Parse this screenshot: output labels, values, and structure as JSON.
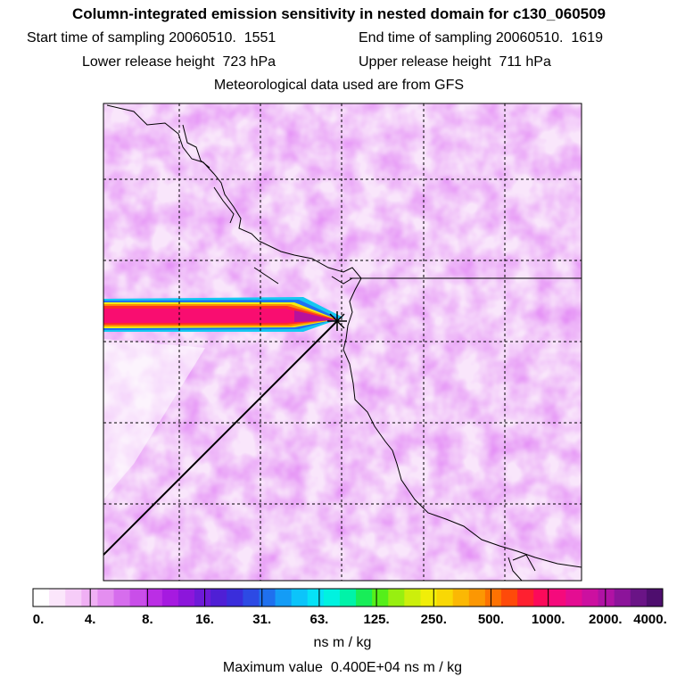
{
  "header": {
    "title": "Column-integrated emission sensitivity in nested domain for c130_060509",
    "start_label": "Start time of sampling",
    "start_value": "20060510.  1551",
    "end_label": "End time of sampling",
    "end_value": "20060510.  1619",
    "lower_label": "Lower release height",
    "lower_value": "723 hPa",
    "upper_label": "Upper release height",
    "upper_value": "711 hPa",
    "met_line": "Meteorological data used are from GFS"
  },
  "colorbar": {
    "labels": [
      "0.",
      "4.",
      "8.",
      "16.",
      "31.",
      "63.",
      "125.",
      "250.",
      "500.",
      "1000.",
      "2000.",
      "4000."
    ],
    "colors": [
      "#ffffff",
      "#fbe6fb",
      "#f6ccf8",
      "#f0b0f4",
      "#e48ef0",
      "#d66ded",
      "#c94ee9",
      "#bb2ee5",
      "#a61ae0",
      "#8c16db",
      "#6e1ad8",
      "#4f1fd5",
      "#3a2ddb",
      "#2d4ae4",
      "#1f70ee",
      "#149cf6",
      "#0cc4fa",
      "#06e2f6",
      "#00f2e0",
      "#00f3a8",
      "#18ed58",
      "#55ef1a",
      "#98ef10",
      "#ccef0c",
      "#f1ee08",
      "#f9d805",
      "#fbb804",
      "#fc9703",
      "#fd7202",
      "#fe4a0a",
      "#fe2030",
      "#fc0a5a",
      "#f50a7c",
      "#e40d92",
      "#cc10a0",
      "#b012a4",
      "#8c149a",
      "#6a1486",
      "#4e0e6e"
    ],
    "units": "ns m / kg",
    "max_label": "Maximum value",
    "max_value": "0.400E+04",
    "max_units": "ns m / kg"
  }
}
